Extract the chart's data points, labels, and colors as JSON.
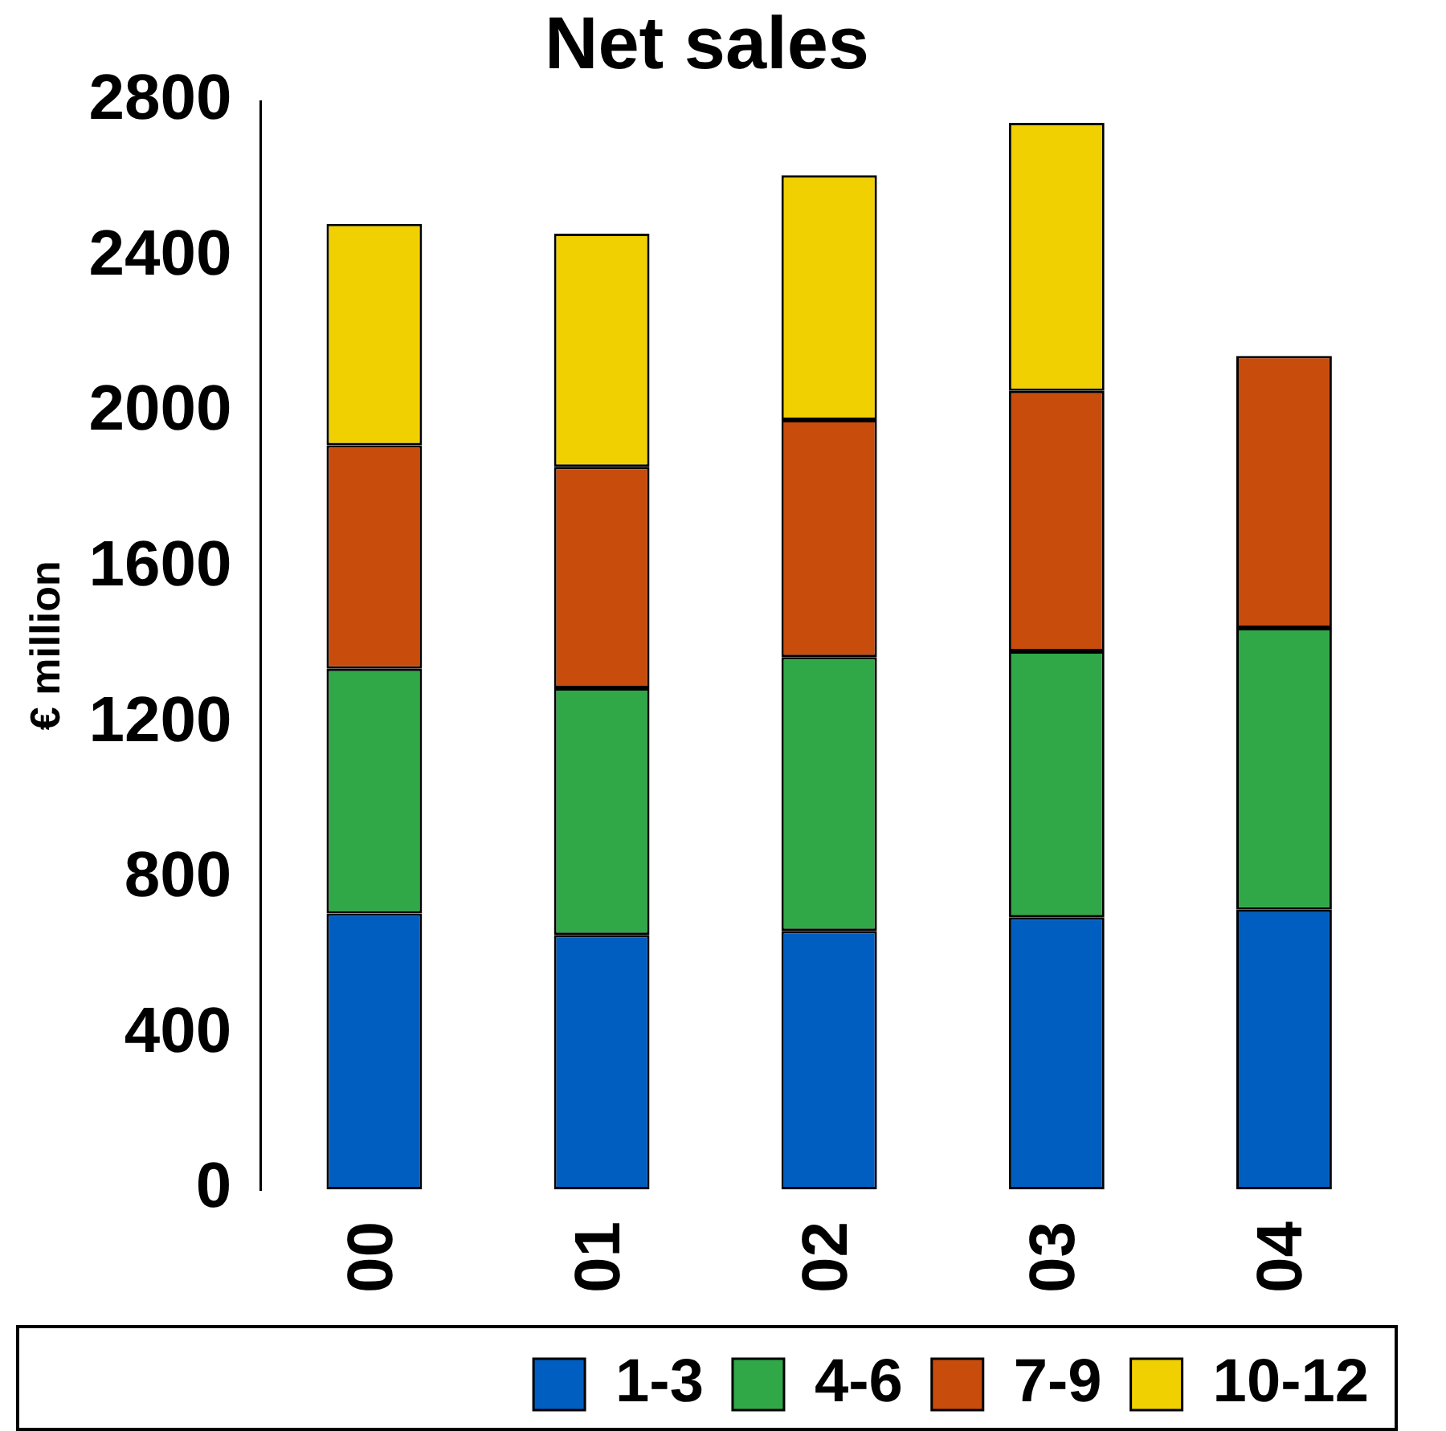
{
  "chart_data": {
    "type": "bar",
    "title": "Net sales",
    "ylabel": "€ million",
    "stacked": true,
    "categories": [
      "00",
      "01",
      "02",
      "03",
      "04"
    ],
    "series": [
      {
        "name": "1-3",
        "color": "#005ec0",
        "values": [
          710,
          655,
          665,
          700,
          720
        ]
      },
      {
        "name": "4-6",
        "color": "#30a848",
        "values": [
          630,
          635,
          705,
          685,
          725
        ]
      },
      {
        "name": "7-9",
        "color": "#c84c0c",
        "values": [
          575,
          570,
          610,
          670,
          700
        ]
      },
      {
        "name": "10-12",
        "color": "#f0d000",
        "values": [
          570,
          600,
          630,
          690,
          null
        ]
      }
    ],
    "ylim": [
      0,
      2800
    ],
    "yticks": [
      0,
      400,
      800,
      1200,
      1600,
      2000,
      2400,
      2800
    ],
    "grid": false,
    "legend": "bottom"
  }
}
